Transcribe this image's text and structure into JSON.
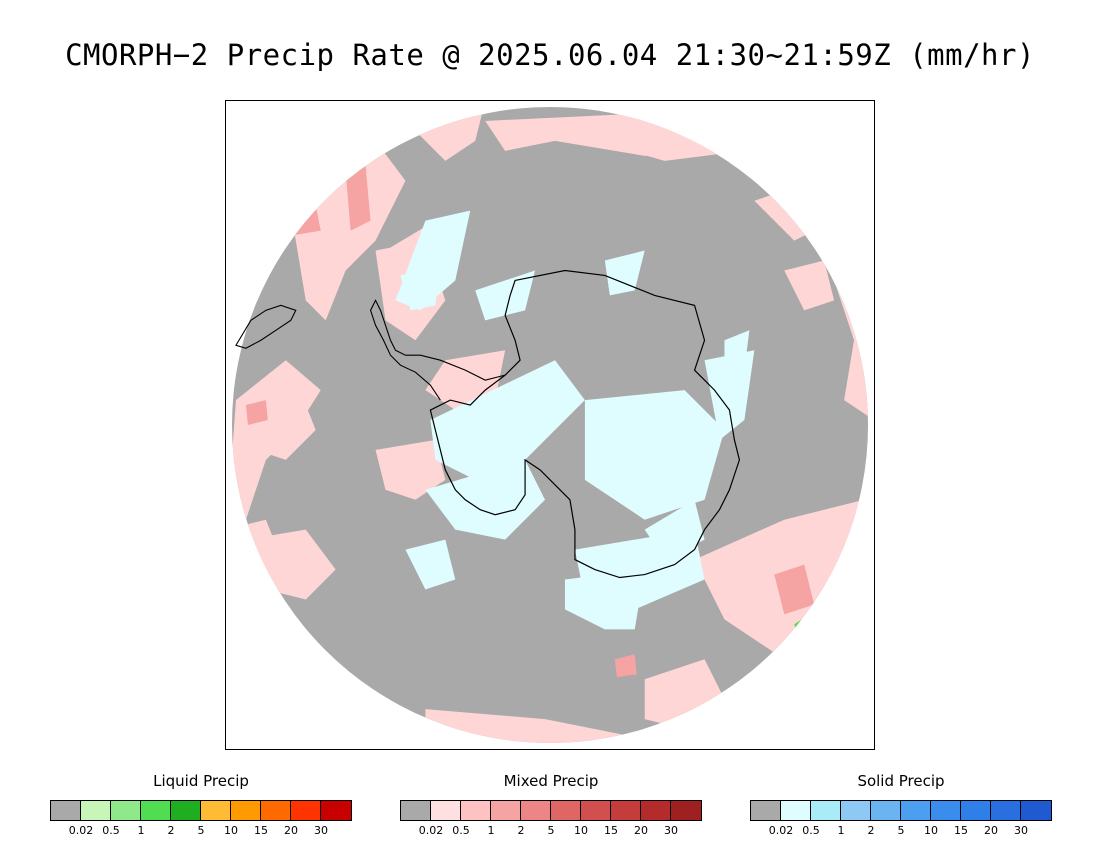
{
  "title": "CMORPH−2 Precip Rate @ 2025.06.04 21:30~21:59Z (mm/hr)",
  "colors": {
    "no_precip": "#a9a9a9",
    "ocean_edge": "#ffffff",
    "coastline": "#000000"
  },
  "legends": [
    {
      "title": "Liquid Precip",
      "colors": [
        "#a9a9a9",
        "#c8f5b8",
        "#8fe98a",
        "#50dd52",
        "#1fae1f",
        "#ffbb33",
        "#ff9a00",
        "#ff6a00",
        "#ff3300",
        "#c80000"
      ],
      "ticks": [
        "0.02",
        "0.5",
        "1",
        "2",
        "5",
        "10",
        "15",
        "20",
        "30"
      ]
    },
    {
      "title": "Mixed Precip",
      "colors": [
        "#a9a9a9",
        "#ffe0e0",
        "#ffc2c2",
        "#f5a3a3",
        "#ec8585",
        "#e06666",
        "#d24f4f",
        "#c43c3c",
        "#b32b2b",
        "#9e2020"
      ],
      "ticks": [
        "0.02",
        "0.5",
        "1",
        "2",
        "5",
        "10",
        "15",
        "20",
        "30"
      ]
    },
    {
      "title": "Solid Precip",
      "colors": [
        "#a9a9a9",
        "#dffcff",
        "#a9ecf7",
        "#8ec9f5",
        "#6ab4f2",
        "#4c9ff0",
        "#3a8ded",
        "#2f7fe8",
        "#2a6fe0",
        "#1f5ad0"
      ],
      "ticks": [
        "0.02",
        "0.5",
        "1",
        "2",
        "5",
        "10",
        "15",
        "20",
        "30"
      ]
    }
  ]
}
